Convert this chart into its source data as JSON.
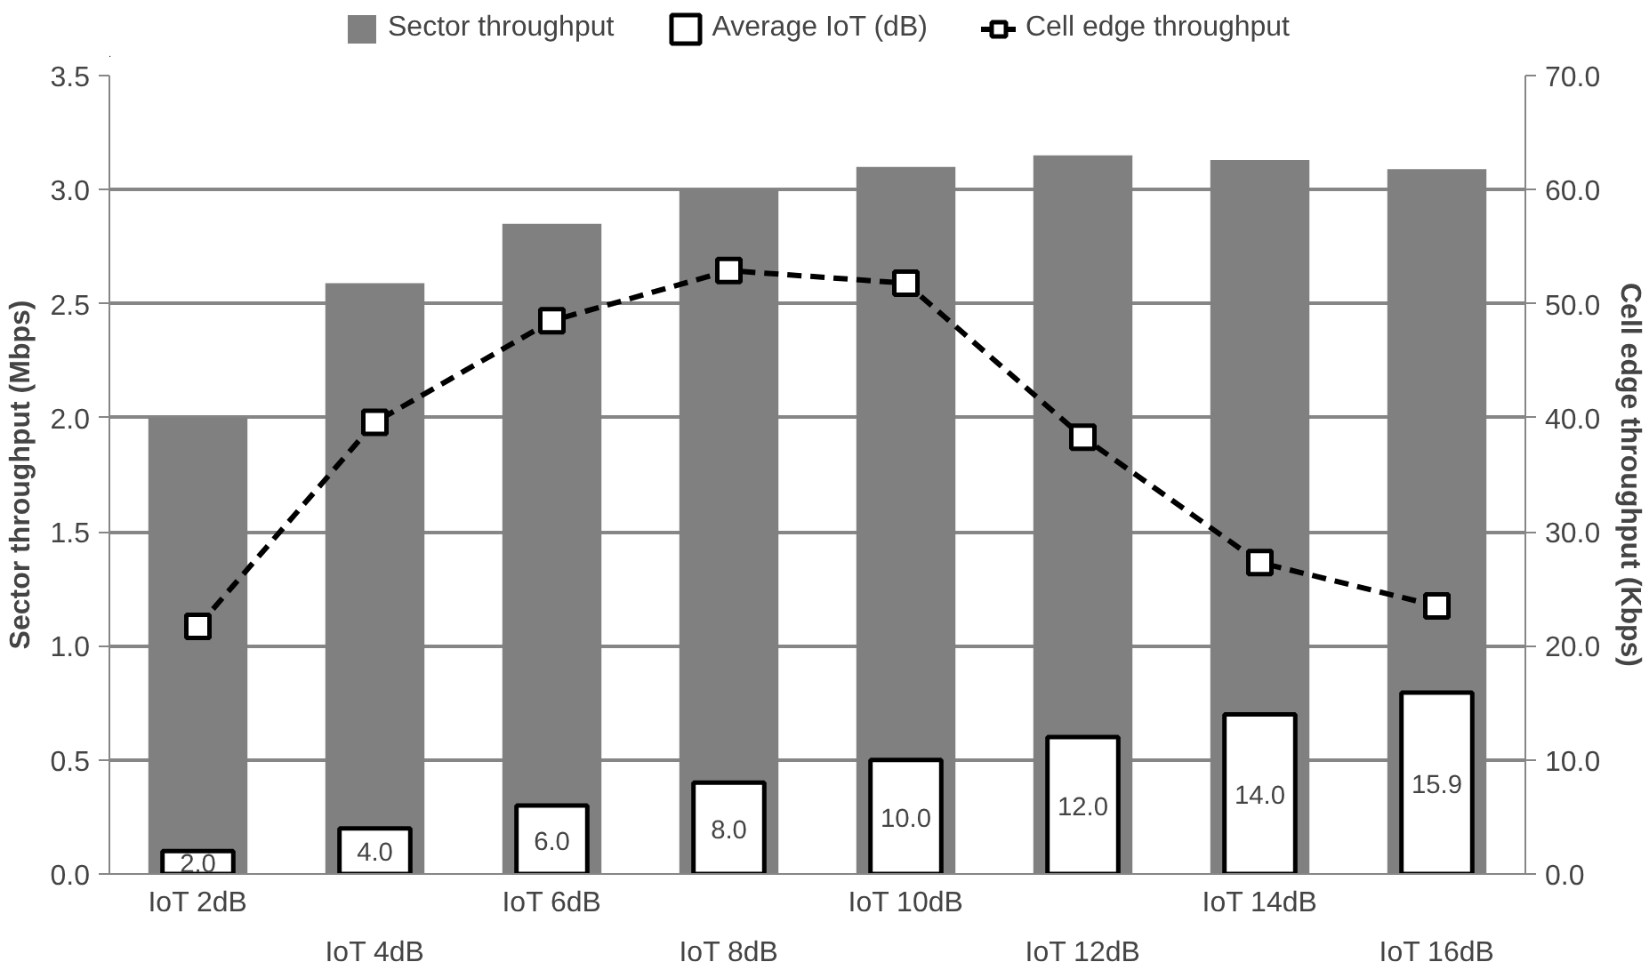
{
  "chart_data": {
    "type": "bar",
    "categories": [
      "IoT 2dB",
      "IoT 4dB",
      "IoT 6dB",
      "IoT 8dB",
      "IoT 10dB",
      "IoT 12dB",
      "IoT 14dB",
      "IoT 16dB"
    ],
    "ylabel": "Sector throughput (Mbps)",
    "y2label": "Cell edge throughput (Kbps)",
    "ylim": [
      0,
      3.5
    ],
    "yticks": [
      {
        "value": 0,
        "label": "0.0"
      },
      {
        "value": 0.5,
        "label": "0.5"
      },
      {
        "value": 1,
        "label": "1.0"
      },
      {
        "value": 1.5,
        "label": "1.5"
      },
      {
        "value": 2,
        "label": "2.0"
      },
      {
        "value": 2.5,
        "label": "2.5"
      },
      {
        "value": 3,
        "label": "3.0"
      },
      {
        "value": 3.5,
        "label": "3.5"
      }
    ],
    "y2lim": [
      0,
      70
    ],
    "y2ticks": [
      {
        "value": 0,
        "label": "0.0"
      },
      {
        "value": 10,
        "label": "10.0"
      },
      {
        "value": 20,
        "label": "20.0"
      },
      {
        "value": 30,
        "label": "30.0"
      },
      {
        "value": 40,
        "label": "40.0"
      },
      {
        "value": 50,
        "label": "50.0"
      },
      {
        "value": 60,
        "label": "60.0"
      },
      {
        "value": 70,
        "label": "70.0"
      }
    ],
    "grid": "y",
    "legend": "top",
    "series": [
      {
        "name": "Sector throughput",
        "color": "#808080",
        "values": [
          2.0,
          2.59,
          2.85,
          3.0,
          3.1,
          3.15,
          3.13,
          3.09
        ]
      },
      {
        "name": "Average IoT (dB)",
        "color": "#ffffff",
        "axis": "y2",
        "values": [
          2.0,
          4.0,
          6.0,
          8.0,
          10.0,
          12.0,
          14.0,
          15.9
        ],
        "value_labels": [
          "2.0",
          "4.0",
          "6.0",
          "8.0",
          "10.0",
          "12.0",
          "14.0",
          "15.9"
        ]
      },
      {
        "name": "Cell edge throughput",
        "color": "#000000",
        "type": "line",
        "axis": "y2",
        "marker": "square",
        "line_style": "dashed",
        "values": [
          21.7,
          39.6,
          48.5,
          52.9,
          51.8,
          38.3,
          27.3,
          23.5
        ]
      }
    ]
  }
}
